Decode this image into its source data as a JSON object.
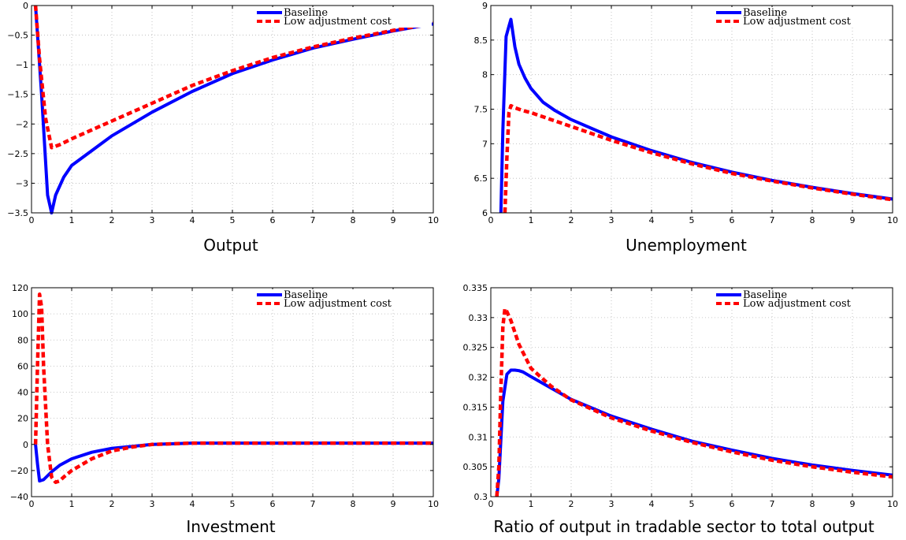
{
  "chart_data": [
    {
      "type": "line",
      "title": "Output",
      "xlim": [
        0,
        10
      ],
      "ylim": [
        -3.5,
        0
      ],
      "xticks": [
        0,
        1,
        2,
        3,
        4,
        5,
        6,
        7,
        8,
        9,
        10
      ],
      "yticks": [
        -3.5,
        -3,
        -2.5,
        -2,
        -1.5,
        -1,
        -0.5,
        0
      ],
      "ytick_labels": [
        "−3.5",
        "−3",
        "−2.5",
        "−2",
        "−1.5",
        "−1",
        "−0.5",
        "0"
      ],
      "grid": true,
      "legend": "top-right",
      "series": [
        {
          "name": "Baseline",
          "color": "#0000ff",
          "style": "solid",
          "x": [
            0.1,
            0.25,
            0.4,
            0.5,
            0.6,
            0.8,
            1,
            1.5,
            2,
            3,
            4,
            5,
            6,
            7,
            8,
            9,
            10
          ],
          "y": [
            0,
            -1.5,
            -3.2,
            -3.5,
            -3.2,
            -2.9,
            -2.7,
            -2.45,
            -2.2,
            -1.8,
            -1.45,
            -1.15,
            -0.92,
            -0.72,
            -0.57,
            -0.43,
            -0.31
          ]
        },
        {
          "name": "Low adjustment cost",
          "color": "#ff0000",
          "style": "dashed",
          "x": [
            0.1,
            0.2,
            0.35,
            0.5,
            0.7,
            1,
            2,
            3,
            4,
            5,
            6,
            7,
            8,
            9,
            10
          ],
          "y": [
            0,
            -0.9,
            -1.9,
            -2.4,
            -2.35,
            -2.25,
            -1.95,
            -1.65,
            -1.35,
            -1.1,
            -0.88,
            -0.7,
            -0.55,
            -0.42,
            -0.3
          ]
        }
      ]
    },
    {
      "type": "line",
      "title": "Unemployment",
      "xlim": [
        0,
        10
      ],
      "ylim": [
        6,
        9
      ],
      "xticks": [
        0,
        1,
        2,
        3,
        4,
        5,
        6,
        7,
        8,
        9,
        10
      ],
      "yticks": [
        6,
        6.5,
        7,
        7.5,
        8,
        8.5,
        9
      ],
      "ytick_labels": [
        "6",
        "6.5",
        "7",
        "7.5",
        "8",
        "8.5",
        "9"
      ],
      "grid": true,
      "legend": "top-right",
      "series": [
        {
          "name": "Baseline",
          "color": "#0000ff",
          "style": "solid",
          "x": [
            0.25,
            0.3,
            0.38,
            0.45,
            0.5,
            0.6,
            0.7,
            0.85,
            1,
            1.3,
            1.6,
            2,
            3,
            4,
            5,
            6,
            7,
            8,
            9,
            10
          ],
          "y": [
            6,
            7.2,
            8.55,
            8.7,
            8.8,
            8.4,
            8.15,
            7.95,
            7.8,
            7.6,
            7.48,
            7.35,
            7.1,
            6.9,
            6.73,
            6.59,
            6.47,
            6.37,
            6.28,
            6.2
          ]
        },
        {
          "name": "Low adjustment cost",
          "color": "#ff0000",
          "style": "dashed",
          "x": [
            0.35,
            0.4,
            0.45,
            0.5,
            0.6,
            0.8,
            1,
            1.5,
            2,
            3,
            4,
            5,
            6,
            7,
            8,
            9,
            10
          ],
          "y": [
            6,
            6.8,
            7.45,
            7.55,
            7.52,
            7.48,
            7.45,
            7.35,
            7.25,
            7.05,
            6.87,
            6.71,
            6.57,
            6.46,
            6.36,
            6.27,
            6.19
          ]
        }
      ]
    },
    {
      "type": "line",
      "title": "Investment",
      "xlim": [
        0,
        10
      ],
      "ylim": [
        -40,
        120
      ],
      "xticks": [
        0,
        1,
        2,
        3,
        4,
        5,
        6,
        7,
        8,
        9,
        10
      ],
      "yticks": [
        -40,
        -20,
        0,
        20,
        40,
        60,
        80,
        100,
        120
      ],
      "ytick_labels": [
        "−40",
        "−20",
        "0",
        "20",
        "40",
        "60",
        "80",
        "100",
        "120"
      ],
      "grid": true,
      "legend": "top-right",
      "series": [
        {
          "name": "Baseline",
          "color": "#0000ff",
          "style": "solid",
          "x": [
            0.1,
            0.15,
            0.2,
            0.3,
            0.5,
            0.7,
            1,
            1.5,
            2,
            2.5,
            3,
            4,
            5,
            6,
            7,
            8,
            9,
            10
          ],
          "y": [
            0,
            -15,
            -28,
            -27,
            -21,
            -16,
            -11,
            -6,
            -3,
            -1.5,
            0,
            1,
            1,
            1,
            1,
            1,
            1,
            1
          ]
        },
        {
          "name": "Low adjustment cost",
          "color": "#ff0000",
          "style": "dashed",
          "x": [
            0.1,
            0.15,
            0.2,
            0.25,
            0.3,
            0.4,
            0.5,
            0.6,
            0.7,
            0.8,
            1,
            1.5,
            2,
            2.5,
            3,
            4,
            5,
            6,
            7,
            8,
            9,
            10
          ],
          "y": [
            0,
            60,
            115,
            105,
            60,
            0,
            -25,
            -29,
            -28,
            -25,
            -20,
            -11,
            -5,
            -2,
            0,
            1,
            1,
            1,
            1,
            1,
            1,
            1
          ]
        }
      ]
    },
    {
      "type": "line",
      "title": "Ratio of output in tradable sector to total output",
      "xlim": [
        0,
        10
      ],
      "ylim": [
        0.3,
        0.335
      ],
      "xticks": [
        0,
        1,
        2,
        3,
        4,
        5,
        6,
        7,
        8,
        9,
        10
      ],
      "yticks": [
        0.3,
        0.305,
        0.31,
        0.315,
        0.32,
        0.325,
        0.33,
        0.335
      ],
      "ytick_labels": [
        "0.3",
        "0.305",
        "0.31",
        "0.315",
        "0.32",
        "0.325",
        "0.33",
        "0.335"
      ],
      "grid": true,
      "legend": "top-right",
      "series": [
        {
          "name": "Baseline",
          "color": "#0000ff",
          "style": "solid",
          "x": [
            0.15,
            0.2,
            0.3,
            0.4,
            0.5,
            0.6,
            0.7,
            0.8,
            1,
            1.5,
            2,
            3,
            4,
            5,
            6,
            7,
            8,
            9,
            10
          ],
          "y": [
            0.3,
            0.303,
            0.316,
            0.3205,
            0.3212,
            0.3212,
            0.3211,
            0.3209,
            0.3201,
            0.3182,
            0.3163,
            0.3135,
            0.3113,
            0.3093,
            0.3078,
            0.3064,
            0.3053,
            0.3044,
            0.3036
          ]
        },
        {
          "name": "Low adjustment cost",
          "color": "#ff0000",
          "style": "dashed",
          "x": [
            0.15,
            0.2,
            0.25,
            0.3,
            0.35,
            0.4,
            0.5,
            0.7,
            1,
            1.5,
            2,
            3,
            4,
            5,
            6,
            7,
            8,
            9,
            10
          ],
          "y": [
            0.3,
            0.305,
            0.318,
            0.3285,
            0.3315,
            0.331,
            0.3295,
            0.3255,
            0.3215,
            0.3185,
            0.3162,
            0.3132,
            0.311,
            0.3091,
            0.3075,
            0.3061,
            0.305,
            0.3041,
            0.3033
          ]
        }
      ]
    }
  ]
}
